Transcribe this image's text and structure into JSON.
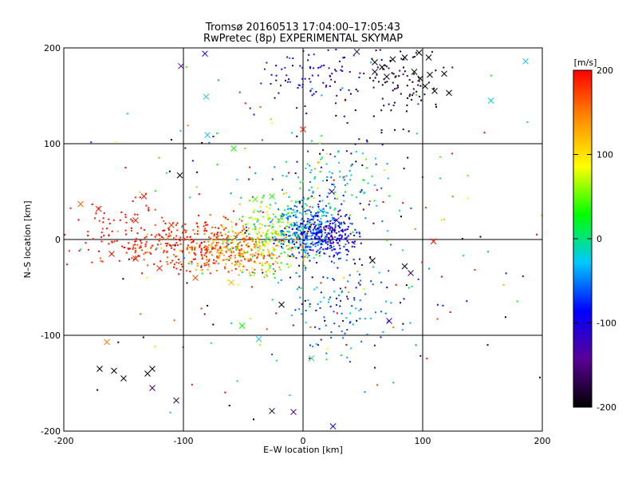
{
  "chart_data": {
    "type": "scatter",
    "title": "Tromsø 20160513 17:04:00–17:05:43",
    "subtitle": "RwPretec (8p) EXPERIMENTAL SKYMAP",
    "xlabel": "E–W location [km]",
    "ylabel": "N–S location [km]",
    "xlim": [
      -200,
      200
    ],
    "ylim": [
      -200,
      200
    ],
    "xticks": [
      -200,
      -100,
      0,
      100,
      200
    ],
    "yticks": [
      -200,
      -100,
      0,
      100,
      200
    ],
    "grid_lines": {
      "x": [
        -100,
        0,
        100
      ],
      "y": [
        -100,
        0,
        100
      ]
    },
    "colorbar": {
      "label": "[m/s]",
      "range": [
        -200,
        200
      ],
      "ticks": [
        200,
        100,
        0,
        -100,
        -200
      ],
      "placement": "right",
      "colormap": [
        "#000000",
        "#5a0096",
        "#0000ff",
        "#00c8ff",
        "#00ff00",
        "#ffff00",
        "#ff8c00",
        "#ff0000"
      ]
    },
    "markers": {
      "dot": "individual point",
      "cross": "x marker"
    },
    "clusters": [
      {
        "cx": -95,
        "cy": -5,
        "sx": 30,
        "sy": 14,
        "v": 185,
        "n": 280,
        "spread_v": 20
      },
      {
        "cx": -55,
        "cy": -10,
        "sx": 20,
        "sy": 12,
        "v": 140,
        "n": 240,
        "spread_v": 30
      },
      {
        "cx": -25,
        "cy": 5,
        "sx": 15,
        "sy": 18,
        "v": 60,
        "n": 220,
        "spread_v": 40
      },
      {
        "cx": 0,
        "cy": 12,
        "sx": 14,
        "sy": 15,
        "v": -40,
        "n": 260,
        "spread_v": 30
      },
      {
        "cx": 18,
        "cy": 5,
        "sx": 14,
        "sy": 12,
        "v": -100,
        "n": 260,
        "spread_v": 25
      },
      {
        "cx": -150,
        "cy": 10,
        "sx": 22,
        "sy": 18,
        "v": 195,
        "n": 70,
        "spread_v": 10
      },
      {
        "cx": 40,
        "cy": -70,
        "sx": 30,
        "sy": 25,
        "v": -60,
        "n": 120,
        "spread_v": 30
      },
      {
        "cx": 10,
        "cy": 170,
        "sx": 25,
        "sy": 18,
        "v": -100,
        "n": 90,
        "spread_v": 30
      },
      {
        "cx": 80,
        "cy": 160,
        "sx": 20,
        "sy": 22,
        "v": -185,
        "n": 90,
        "spread_v": 15
      },
      {
        "cx": 30,
        "cy": 60,
        "sx": 25,
        "sy": 25,
        "v": -20,
        "n": 110,
        "spread_v": 40
      },
      {
        "cx": 0,
        "cy": 0,
        "sx": 90,
        "sy": 80,
        "v": 0,
        "n": 260,
        "spread_v": 180
      }
    ],
    "crosses": [
      {
        "x": -170,
        "y": -135,
        "v": -200
      },
      {
        "x": -158,
        "y": -137,
        "v": -200
      },
      {
        "x": -150,
        "y": -145,
        "v": -200
      },
      {
        "x": -130,
        "y": -140,
        "v": -200
      },
      {
        "x": -126,
        "y": -135,
        "v": -200
      },
      {
        "x": -126,
        "y": -155,
        "v": -160
      },
      {
        "x": -106,
        "y": -168,
        "v": -160
      },
      {
        "x": -164,
        "y": -107,
        "v": 150
      },
      {
        "x": -103,
        "y": 67,
        "v": -200
      },
      {
        "x": -102,
        "y": 181,
        "v": -150
      },
      {
        "x": -82,
        "y": 194,
        "v": -90
      },
      {
        "x": -81,
        "y": 149,
        "v": -20
      },
      {
        "x": -80,
        "y": 109,
        "v": -30
      },
      {
        "x": -58,
        "y": 95,
        "v": 30
      },
      {
        "x": -51,
        "y": -90,
        "v": 30
      },
      {
        "x": -37,
        "y": -104,
        "v": -20
      },
      {
        "x": -18,
        "y": -68,
        "v": -200
      },
      {
        "x": -26,
        "y": -179,
        "v": -180
      },
      {
        "x": -8,
        "y": -180,
        "v": -140
      },
      {
        "x": 0,
        "y": 115,
        "v": 190
      },
      {
        "x": 7,
        "y": -124,
        "v": 0
      },
      {
        "x": 25,
        "y": -195,
        "v": -100
      },
      {
        "x": 58,
        "y": -22,
        "v": -200
      },
      {
        "x": 85,
        "y": -28,
        "v": -200
      },
      {
        "x": 90,
        "y": -35,
        "v": -160
      },
      {
        "x": 109,
        "y": -2,
        "v": 195
      },
      {
        "x": 72,
        "y": -85,
        "v": -120
      },
      {
        "x": 157,
        "y": 145,
        "v": -20
      },
      {
        "x": 186,
        "y": 186,
        "v": -30
      },
      {
        "x": -186,
        "y": 37,
        "v": 160
      },
      {
        "x": -171,
        "y": 32,
        "v": 190
      },
      {
        "x": -133,
        "y": 45,
        "v": 190
      },
      {
        "x": -40,
        "y": 42,
        "v": 50
      },
      {
        "x": -26,
        "y": 45,
        "v": 40
      },
      {
        "x": -20,
        "y": 20,
        "v": 60
      },
      {
        "x": 15,
        "y": 30,
        "v": -40
      },
      {
        "x": 28,
        "y": 20,
        "v": -100
      },
      {
        "x": 24,
        "y": 50,
        "v": -120
      },
      {
        "x": 60,
        "y": 185,
        "v": -200
      },
      {
        "x": 66,
        "y": 180,
        "v": -200
      },
      {
        "x": 75,
        "y": 188,
        "v": -200
      },
      {
        "x": 85,
        "y": 190,
        "v": -200
      },
      {
        "x": 93,
        "y": 175,
        "v": -200
      },
      {
        "x": 98,
        "y": 168,
        "v": -200
      },
      {
        "x": 102,
        "y": 160,
        "v": -200
      },
      {
        "x": 106,
        "y": 172,
        "v": -200
      },
      {
        "x": 110,
        "y": 155,
        "v": -200
      },
      {
        "x": 118,
        "y": 173,
        "v": -200
      },
      {
        "x": 122,
        "y": 153,
        "v": -200
      },
      {
        "x": 70,
        "y": 170,
        "v": -180
      },
      {
        "x": 60,
        "y": 175,
        "v": -180
      },
      {
        "x": 45,
        "y": 196,
        "v": -180
      },
      {
        "x": 97,
        "y": 195,
        "v": -200
      },
      {
        "x": 105,
        "y": 190,
        "v": -200
      },
      {
        "x": -140,
        "y": -20,
        "v": 190
      },
      {
        "x": -160,
        "y": -15,
        "v": 195
      },
      {
        "x": -120,
        "y": -30,
        "v": 185
      },
      {
        "x": -90,
        "y": -40,
        "v": 170
      },
      {
        "x": -60,
        "y": -45,
        "v": 120
      },
      {
        "x": -140,
        "y": 20,
        "v": 190
      },
      {
        "x": -110,
        "y": 15,
        "v": 180
      }
    ]
  }
}
